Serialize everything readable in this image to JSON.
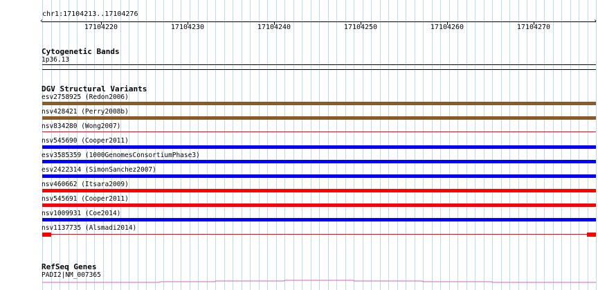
{
  "ruler": {
    "location": "chr1:17104213..17104276",
    "ticks": [
      "17104220",
      "17104230",
      "17104240",
      "17104250",
      "17104260",
      "17104270"
    ]
  },
  "cytoband": {
    "title": "Cytogenetic Bands",
    "band": "1p36.13"
  },
  "dgv": {
    "title": "DGV Structural Variants",
    "variants": [
      {
        "label": "esv2758925 (Redon2006)",
        "color": "#8b5a2b",
        "style": "thick"
      },
      {
        "label": "nsv428421 (Perry2008b)",
        "color": "#8b5a2b",
        "style": "thick"
      },
      {
        "label": "nsv834280 (Wong2007)",
        "color": "#ff0000",
        "style": "thin"
      },
      {
        "label": "nsv545690 (Cooper2011)",
        "color": "#0000ff",
        "style": "thick"
      },
      {
        "label": "esv3585359 (1000GenomesConsortiumPhase3)",
        "color": "#0000ff",
        "style": "thick"
      },
      {
        "label": "esv2422314 (SimonSanchez2007)",
        "color": "#0000ff",
        "style": "thick"
      },
      {
        "label": "nsv460662 (Itsara2009)",
        "color": "#ff0000",
        "style": "thick"
      },
      {
        "label": "nsv545691 (Cooper2011)",
        "color": "#ff0000",
        "style": "thick"
      },
      {
        "label": "nsv1009931 (Coe2014)",
        "color": "#0000ff",
        "style": "thick"
      },
      {
        "label": "nsv1137735 (Alsmadi2014)",
        "color": "#ff0000",
        "style": "ends"
      }
    ]
  },
  "refseq": {
    "title": "RefSeq Genes",
    "gene": "PADI2|NM_007365",
    "color": "#cc66cc"
  }
}
